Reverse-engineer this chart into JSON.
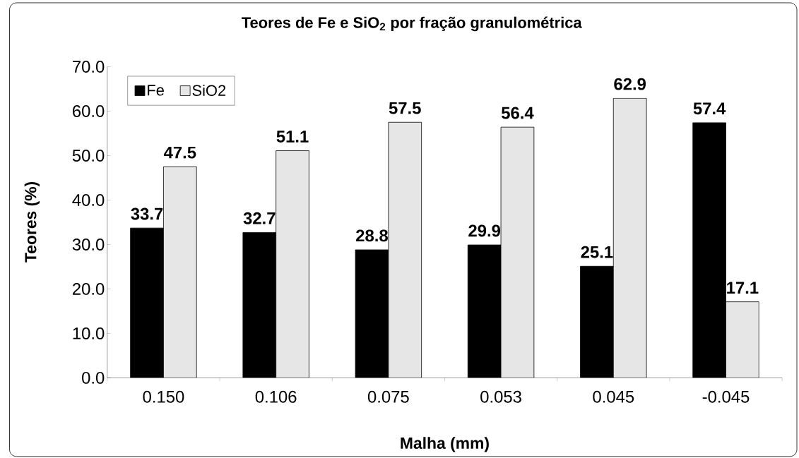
{
  "chart_data": {
    "type": "bar",
    "title": "Teores de Fe e SiO$_{2}$ por fração granulométrica",
    "xlabel": "Malha (mm)",
    "ylabel": "Teores (%)",
    "categories": [
      "0.150",
      "0.106",
      "0.075",
      "0.053",
      "0.045",
      "-0.045"
    ],
    "series": [
      {
        "name": "Fe",
        "color": "#000000",
        "values": [
          33.7,
          32.7,
          28.8,
          29.9,
          25.1,
          57.4
        ]
      },
      {
        "name": "SiO2",
        "color": "#e6e6e6",
        "values": [
          47.5,
          51.1,
          57.5,
          56.4,
          62.9,
          17.1
        ]
      }
    ],
    "ylim": [
      0,
      70
    ],
    "yticks": [
      {
        "value": 0,
        "label": "0.0"
      },
      {
        "value": 10,
        "label": "10.0"
      },
      {
        "value": 20,
        "label": "20.0"
      },
      {
        "value": 30,
        "label": "30.0"
      },
      {
        "value": 40,
        "label": "40.0"
      },
      {
        "value": 50,
        "label": "50.0"
      },
      {
        "value": 60,
        "label": "60.0"
      },
      {
        "value": 70,
        "label": "70.0"
      }
    ],
    "data_labels": true,
    "grid": false,
    "legend": "top left"
  }
}
